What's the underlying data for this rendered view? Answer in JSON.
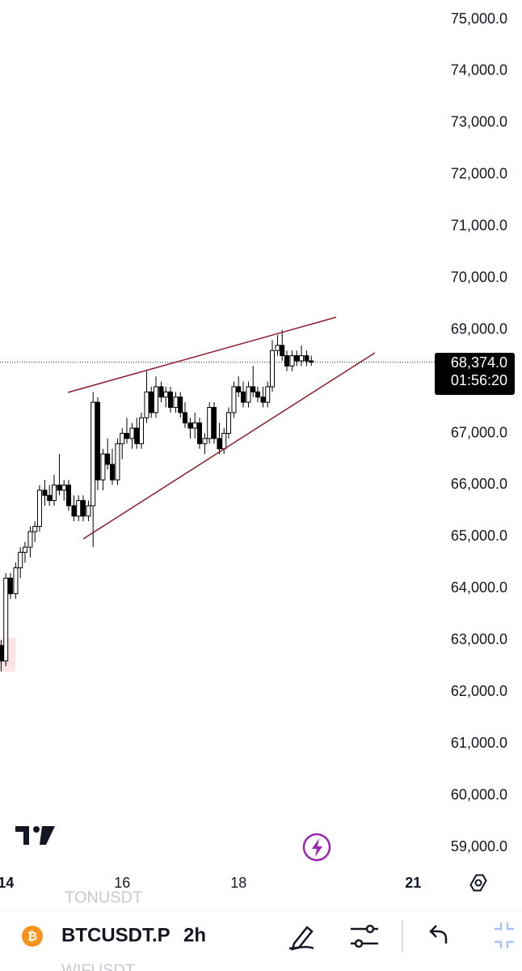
{
  "chart_data": {
    "type": "candlestick",
    "symbol": "BTCUSDT.P",
    "interval": "2h",
    "x": [
      13.92,
      14,
      14.08,
      14.17,
      14.25,
      14.33,
      14.42,
      14.5,
      14.58,
      14.67,
      14.75,
      14.83,
      14.92,
      15,
      15.08,
      15.17,
      15.25,
      15.33,
      15.42,
      15.5,
      15.58,
      15.67,
      15.75,
      15.83,
      15.92,
      16,
      16.08,
      16.17,
      16.25,
      16.33,
      16.42,
      16.5,
      16.58,
      16.67,
      16.75,
      16.83,
      16.92,
      17,
      17.08,
      17.17,
      17.25,
      17.33,
      17.42,
      17.5,
      17.58,
      17.67,
      17.75,
      17.83,
      17.92,
      18,
      18.08,
      18.17,
      18.25,
      18.33,
      18.42,
      18.5,
      18.58,
      18.67,
      18.75,
      18.83,
      18.92,
      19,
      19.08,
      19.17,
      19.25
    ],
    "open": [
      62900,
      62600,
      64200,
      63900,
      64400,
      64700,
      64800,
      65100,
      65200,
      65900,
      65800,
      65700,
      66000,
      65900,
      66000,
      65600,
      65400,
      65700,
      65400,
      65600,
      67600,
      66100,
      66600,
      66400,
      66100,
      66800,
      67000,
      66900,
      67100,
      66800,
      67300,
      67800,
      67400,
      67900,
      67700,
      67800,
      67500,
      67700,
      67400,
      67200,
      67100,
      67200,
      66800,
      66900,
      67500,
      66900,
      66700,
      67000,
      67400,
      67900,
      67800,
      67600,
      67900,
      67800,
      67700,
      67600,
      67900,
      68600,
      68700,
      68500,
      68300,
      68500,
      68400,
      68500,
      68400
    ],
    "high": [
      63000,
      64300,
      64300,
      64500,
      64800,
      64900,
      65200,
      65300,
      66000,
      66100,
      66000,
      66200,
      66600,
      66100,
      66100,
      65800,
      65800,
      65800,
      65700,
      67800,
      67700,
      66700,
      66900,
      66700,
      66900,
      67100,
      67300,
      67200,
      67300,
      67400,
      68200,
      67900,
      68100,
      68000,
      67900,
      67900,
      67800,
      67800,
      67600,
      67300,
      67400,
      67300,
      67000,
      67600,
      67600,
      67200,
      67100,
      67500,
      68000,
      68100,
      68000,
      68000,
      68300,
      67900,
      67900,
      68000,
      68800,
      68900,
      69000,
      68600,
      68600,
      68600,
      68700,
      68600,
      68500
    ],
    "low": [
      62400,
      62500,
      63800,
      63800,
      64200,
      64500,
      64600,
      64900,
      65100,
      65600,
      65600,
      65600,
      65800,
      65700,
      65500,
      65300,
      65300,
      65300,
      65300,
      64800,
      65900,
      65900,
      66300,
      66000,
      66000,
      66500,
      66800,
      66700,
      66700,
      66700,
      67200,
      67300,
      67300,
      67600,
      67500,
      67400,
      67400,
      67300,
      67100,
      66900,
      66900,
      66700,
      66600,
      66800,
      66800,
      66600,
      66600,
      66900,
      67300,
      67700,
      67500,
      67500,
      67700,
      67600,
      67500,
      67500,
      67800,
      68500,
      68400,
      68200,
      68200,
      68300,
      68300,
      68300,
      68300
    ],
    "close": [
      62600,
      64200,
      63900,
      64400,
      64700,
      64800,
      65100,
      65200,
      65900,
      65800,
      65700,
      66000,
      65900,
      66000,
      65600,
      65400,
      65700,
      65400,
      65600,
      67600,
      66100,
      66600,
      66400,
      66100,
      66800,
      67000,
      66900,
      67100,
      66800,
      67300,
      67800,
      67400,
      67900,
      67700,
      67800,
      67500,
      67700,
      67400,
      67200,
      67100,
      67200,
      66800,
      66900,
      67500,
      66900,
      66700,
      67000,
      67400,
      67900,
      67800,
      67600,
      67900,
      67800,
      67700,
      67600,
      67900,
      68600,
      68700,
      68500,
      68300,
      68500,
      68400,
      68500,
      68400,
      68374
    ],
    "up_color": "#ffffff",
    "down_color": "#000000",
    "ylim": [
      59000,
      75000
    ],
    "yticks": [
      {
        "value": 75000,
        "label": "75,000.0"
      },
      {
        "value": 74000,
        "label": "74,000.0"
      },
      {
        "value": 73000,
        "label": "73,000.0"
      },
      {
        "value": 72000,
        "label": "72,000.0"
      },
      {
        "value": 71000,
        "label": "71,000.0"
      },
      {
        "value": 70000,
        "label": "70,000.0"
      },
      {
        "value": 69000,
        "label": "69,000.0"
      },
      {
        "value": 67000,
        "label": "67,000.0"
      },
      {
        "value": 66000,
        "label": "66,000.0"
      },
      {
        "value": 65000,
        "label": "65,000.0"
      },
      {
        "value": 64000,
        "label": "64,000.0"
      },
      {
        "value": 63000,
        "label": "63,000.0"
      },
      {
        "value": 62000,
        "label": "62,000.0"
      },
      {
        "value": 61000,
        "label": "61,000.0"
      },
      {
        "value": 60000,
        "label": "60,000.0"
      },
      {
        "value": 59000,
        "label": "59,000.0"
      }
    ],
    "xlim": [
      13.9,
      21.33
    ],
    "xticks": [
      14,
      16,
      18,
      21
    ],
    "last_price": {
      "value": 68374,
      "label": "68,374.0"
    },
    "countdown": "01:56:20"
  },
  "toolbar": {
    "prev_symbol": "TONUSDT",
    "next_symbol": "WIFUSDT"
  }
}
